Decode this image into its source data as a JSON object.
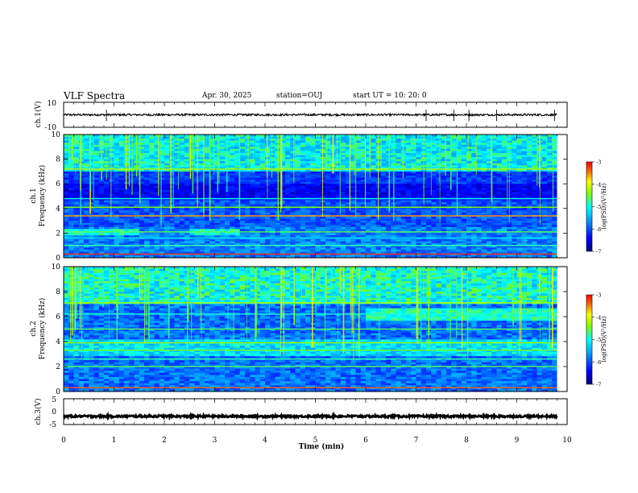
{
  "header": {
    "title": "VLF Spectra",
    "date": "Apr. 30, 2025",
    "station": "station=OUJ",
    "start_time": "start UT =  10: 20: 0"
  },
  "colors": {
    "colormap": [
      "#000080",
      "#0000ff",
      "#0080ff",
      "#00ffff",
      "#80ff00",
      "#ffff00",
      "#ff8000",
      "#ff0000"
    ],
    "trace": "#000000"
  },
  "chart_data": [
    {
      "type": "line",
      "name": "ch1-waveform",
      "ylabel": "ch.1(V)",
      "ylim": [
        -10,
        10
      ],
      "yticks": [
        "10",
        "-10"
      ],
      "baseline": 0,
      "spike_times_min": [
        0.85,
        7.2,
        7.75,
        8.05,
        8.6,
        9.75
      ]
    },
    {
      "type": "heatmap",
      "name": "ch1-spectrogram",
      "ylabel_top": "ch.1",
      "ylabel": "Frequency (kHz)",
      "ylim": [
        0,
        10
      ],
      "yticks": [
        "0",
        "2",
        "4",
        "6",
        "8",
        "10"
      ],
      "colorbar": {
        "label": "log(PSD)(V²/Hz)",
        "ticks": [
          "-3",
          "-4",
          "-5",
          "-6",
          "-7"
        ],
        "range": [
          -7,
          -3
        ]
      },
      "bands_khz": [
        {
          "f": 0.3,
          "level": -3.2
        },
        {
          "f": 1.0,
          "level": -4.8
        },
        {
          "f": 1.6,
          "level": -5.2
        },
        {
          "f": 2.1,
          "level": -4.6
        },
        {
          "f": 3.4,
          "level": -3.6
        },
        {
          "f": 4.1,
          "level": -4.4
        },
        {
          "f": 4.8,
          "level": -5.0
        },
        {
          "f": 7.2,
          "level": -4.2
        }
      ],
      "x_range_min": [
        0,
        9.8
      ]
    },
    {
      "type": "heatmap",
      "name": "ch2-spectrogram",
      "ylabel_top": "ch.2",
      "ylabel": "Frequency (kHz)",
      "ylim": [
        0,
        10
      ],
      "yticks": [
        "0",
        "2",
        "4",
        "6",
        "8",
        "10"
      ],
      "colorbar": {
        "label": "log(PSD)(V²/Hz)",
        "ticks": [
          "-3",
          "-4",
          "-5",
          "-6",
          "-7"
        ],
        "range": [
          -7,
          -3
        ]
      },
      "bands_khz": [
        {
          "f": 0.3,
          "level": -3.4
        },
        {
          "f": 2.0,
          "level": -4.6
        },
        {
          "f": 2.6,
          "level": -4.8
        },
        {
          "f": 3.3,
          "level": -4.5
        },
        {
          "f": 3.9,
          "level": -4.3
        },
        {
          "f": 5.0,
          "level": -4.6
        },
        {
          "f": 6.2,
          "level": -4.9
        },
        {
          "f": 7.1,
          "level": -4.2
        }
      ],
      "x_range_min": [
        0,
        9.8
      ]
    },
    {
      "type": "line",
      "name": "ch3-waveform",
      "ylabel": "ch.3(V)",
      "ylim": [
        -5,
        5
      ],
      "yticks": [
        "5",
        "0",
        "-5"
      ],
      "baseline": -1.8
    }
  ],
  "xaxis": {
    "label": "Time (min)",
    "range": [
      0,
      10
    ],
    "ticks": [
      "0",
      "1",
      "2",
      "3",
      "4",
      "5",
      "6",
      "7",
      "8",
      "9",
      "10"
    ]
  }
}
